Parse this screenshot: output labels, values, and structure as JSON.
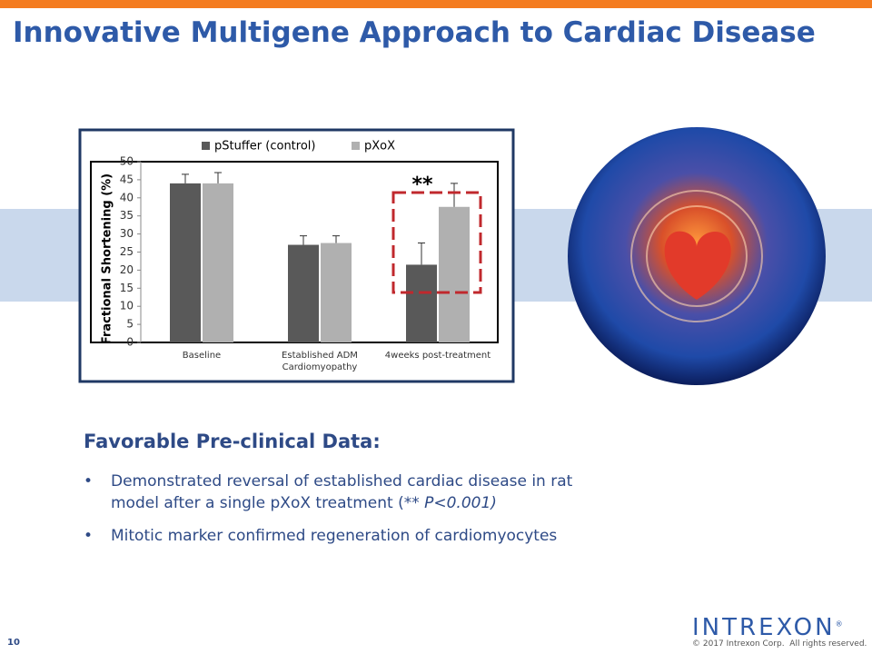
{
  "title": "Innovative Multigene Approach to Cardiac Disease",
  "chart_data": {
    "type": "bar",
    "y_label": "Fractional Shortening (%)",
    "categories": [
      "Baseline",
      "Established ADM Cardiomyopathy",
      "4weeks post-treatment"
    ],
    "series": [
      {
        "name": "pStuffer (control)",
        "color": "#595959",
        "values": [
          44,
          27,
          21.5
        ],
        "errors": [
          2.5,
          2.5,
          6
        ]
      },
      {
        "name": "pXoX",
        "color": "#b0b0b0",
        "values": [
          44,
          27.5,
          37.5
        ],
        "errors": [
          3,
          2,
          6.5
        ]
      }
    ],
    "ylim": [
      0,
      50
    ],
    "yticks": [
      0,
      5,
      10,
      15,
      20,
      25,
      30,
      35,
      40,
      45,
      50
    ],
    "annotation": "**"
  },
  "section": {
    "heading": "Favorable Pre-clinical Data:",
    "bullets": [
      {
        "text": "Demonstrated reversal of established cardiac disease in rat model after a single pXoX treatment (** ",
        "emphasis": "P<0.001)"
      },
      {
        "text": "Mitotic marker confirmed regeneration of cardiomyocytes"
      }
    ]
  },
  "footer": {
    "page": "10",
    "logo": "INTREXON",
    "registered": "®",
    "copyright": "© 2017 Intrexon Corp.  All rights reserved."
  }
}
